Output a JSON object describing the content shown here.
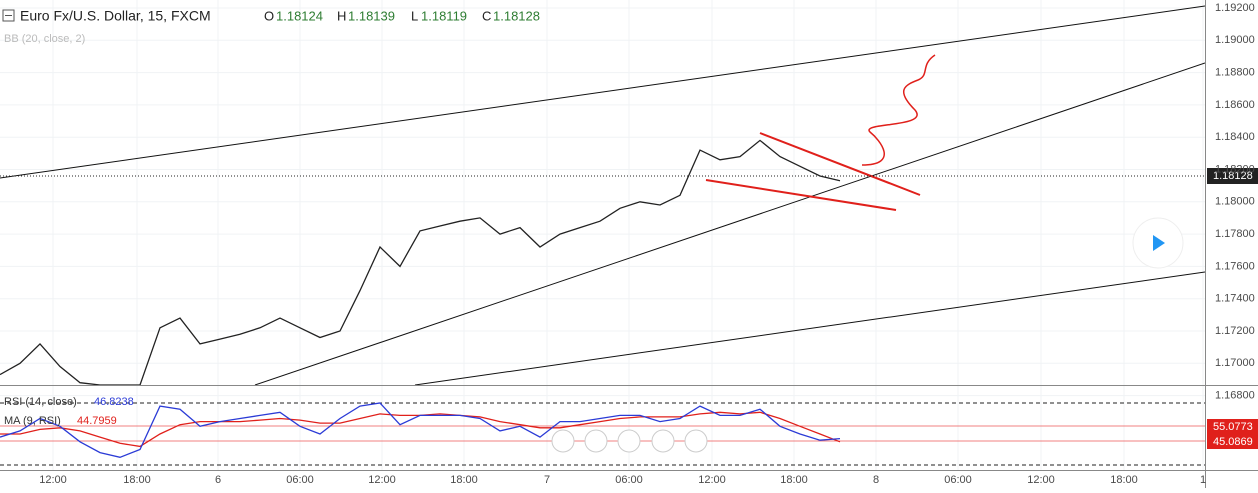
{
  "header": {
    "symbol": "Euro Fx/U.S. Dollar, 15, FXCM",
    "open_label": "O",
    "open": "1.18124",
    "high_label": "H",
    "high": "1.18139",
    "low_label": "L",
    "low": "1.18119",
    "close_label": "C",
    "close": "1.18128",
    "indicator": "BB (20, close, 2)"
  },
  "price_axis": {
    "ticks": [
      "1.19200",
      "1.19000",
      "1.18800",
      "1.18600",
      "1.18400",
      "1.18200",
      "1.18000",
      "1.17800",
      "1.17600",
      "1.17400",
      "1.17200",
      "1.17000",
      "1.16800"
    ],
    "current": "1.18128"
  },
  "price_series": {
    "closes": [
      1.1693,
      1.17,
      1.1712,
      1.1698,
      1.1688,
      1.1682,
      1.1678,
      1.168,
      1.1722,
      1.1728,
      1.1712,
      1.1715,
      1.1718,
      1.1722,
      1.1728,
      1.1722,
      1.1716,
      1.172,
      1.1745,
      1.1772,
      1.176,
      1.1782,
      1.1785,
      1.1788,
      1.179,
      1.178,
      1.1784,
      1.1772,
      1.178,
      1.1784,
      1.1788,
      1.1796,
      1.18,
      1.1798,
      1.1804,
      1.1832,
      1.1826,
      1.1828,
      1.1838,
      1.1828,
      1.1822,
      1.1816,
      1.1813
    ]
  },
  "rsi": {
    "name": "RSI (14, close)",
    "value": "46.8238",
    "ma_name": "MA (9, RSI)",
    "ma_value": "44.7959",
    "label_high": "55.0773",
    "label_low": "45.0869",
    "values": [
      48,
      52,
      60,
      55,
      45,
      38,
      35,
      40,
      68,
      66,
      55,
      58,
      60,
      62,
      64,
      55,
      50,
      60,
      68,
      70,
      56,
      62,
      62,
      62,
      60,
      52,
      55,
      48,
      58,
      58,
      60,
      62,
      62,
      58,
      60,
      68,
      62,
      62,
      66,
      55,
      50,
      46,
      47
    ],
    "ma": [
      50,
      50,
      53,
      54,
      52,
      48,
      44,
      42,
      50,
      56,
      58,
      58,
      58,
      59,
      60,
      59,
      57,
      57,
      60,
      63,
      62,
      62,
      63,
      62,
      61,
      58,
      56,
      54,
      54,
      56,
      58,
      60,
      61,
      61,
      61,
      63,
      64,
      63,
      64,
      60,
      55,
      50,
      45
    ]
  },
  "time_axis": [
    "12:00",
    "18:00",
    "6",
    "06:00",
    "12:00",
    "18:00",
    "7",
    "06:00",
    "12:00",
    "18:00",
    "8",
    "06:00",
    "12:00",
    "18:00",
    "1"
  ]
}
